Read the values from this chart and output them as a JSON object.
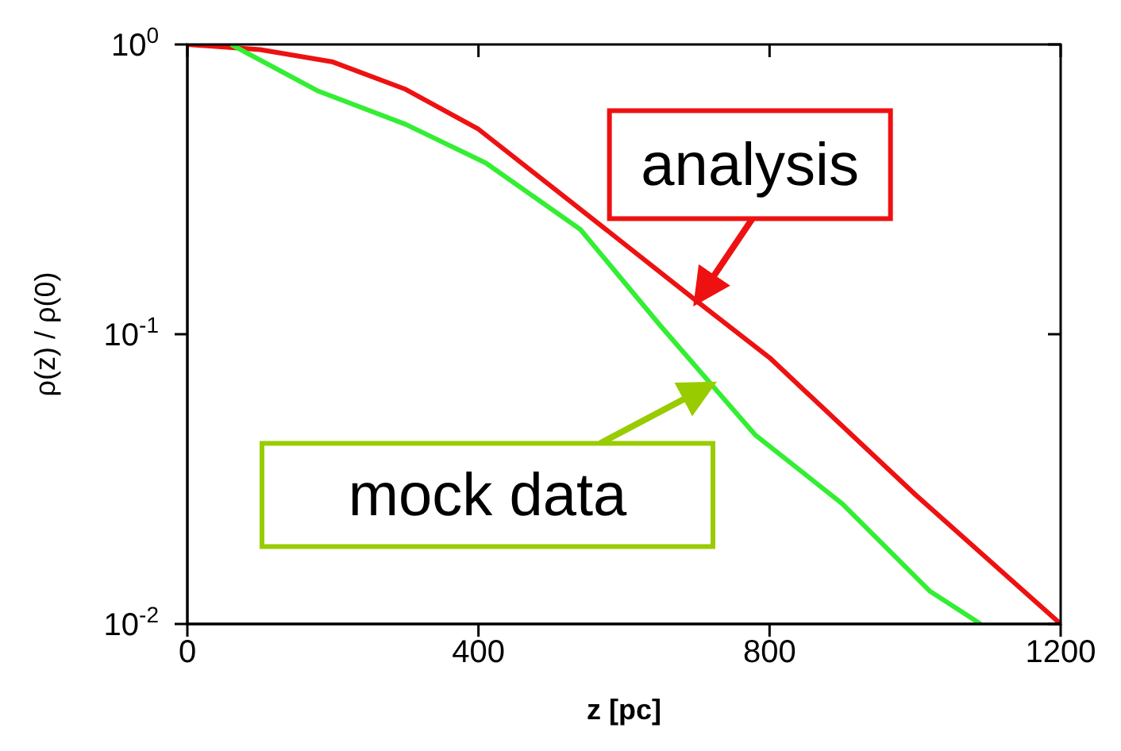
{
  "chart_data": {
    "type": "line",
    "xlabel": "z [pc]",
    "ylabel": "ρ(z) / ρ(0)",
    "log": "y",
    "xlim": [
      0,
      1200
    ],
    "xticks": [
      0,
      400,
      800,
      1200
    ],
    "ylim": [
      0.01,
      1
    ],
    "yticks": [
      {
        "value": 0.01,
        "label": "10$^{-2}$"
      },
      {
        "value": 0.1,
        "label": "10$^{-1}$"
      },
      {
        "value": 1,
        "label": "10$^{0}$"
      }
    ],
    "marker": "none",
    "line_style": "solid",
    "series": [
      {
        "color": "#ee1111",
        "x": [
          0,
          100,
          200,
          300,
          400,
          540,
          700,
          800,
          1000,
          1200
        ],
        "values": [
          1.0,
          0.96,
          0.87,
          0.7,
          0.51,
          0.27,
          0.13,
          0.083,
          0.028,
          0.01
        ]
      },
      {
        "color": "#33ee33",
        "x": [
          60,
          180,
          300,
          410,
          540,
          650,
          780,
          900,
          1020,
          1090
        ],
        "values": [
          1.0,
          0.69,
          0.53,
          0.39,
          0.23,
          0.107,
          0.045,
          0.026,
          0.013,
          0.01
        ]
      }
    ],
    "annotations": [
      {
        "text": "analysis",
        "x": 700,
        "y": 0.13
      },
      {
        "text": "mock data",
        "x": 720,
        "y": 0.067
      }
    ]
  }
}
